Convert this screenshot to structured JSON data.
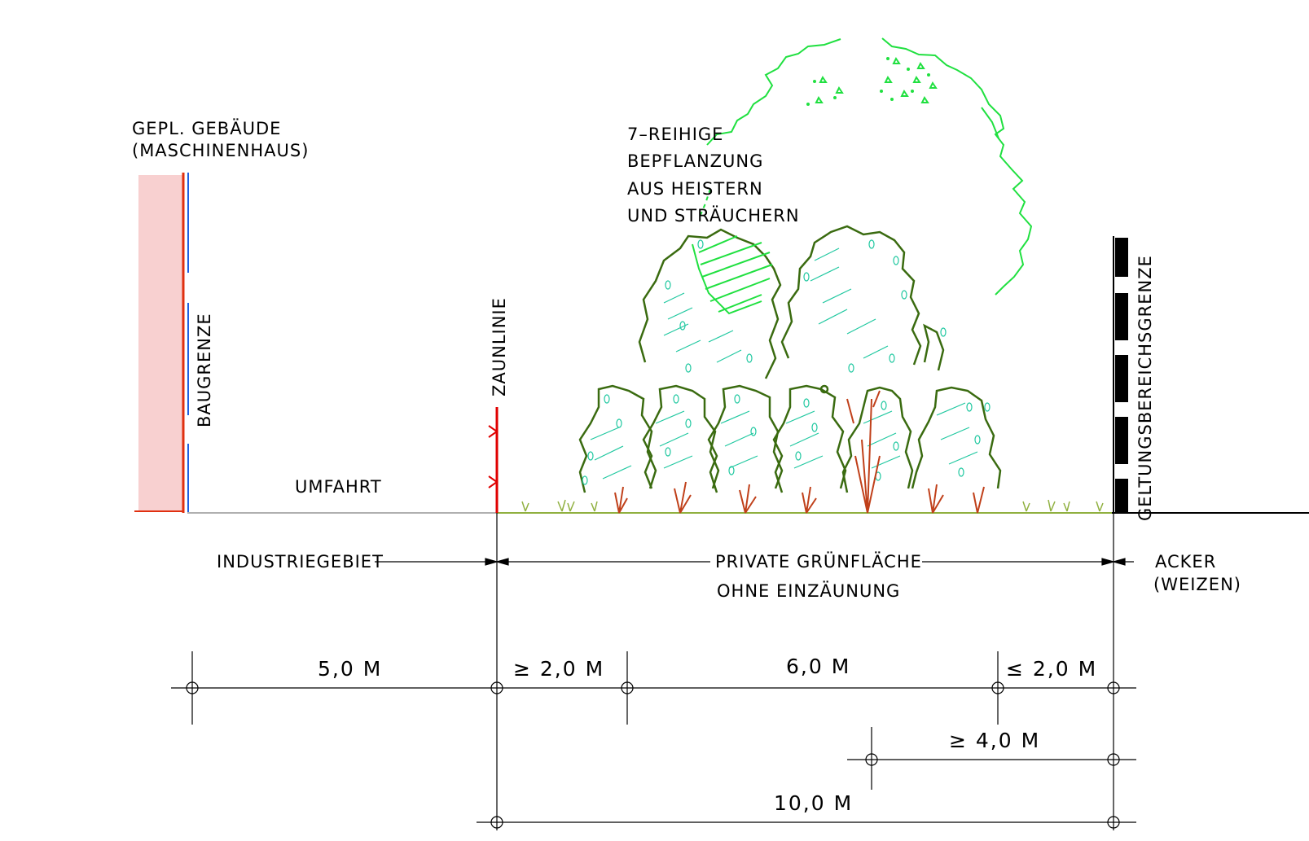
{
  "labels": {
    "building_line1": "GEPL. GEBÄUDE",
    "building_line2": "(MASCHINENHAUS)",
    "baugrenze": "BAUGRENZE",
    "zaunlinie": "ZAUNLINIE",
    "umfahrt": "UMFAHRT",
    "planting_line1": "7–REIHIGE",
    "planting_line2": "BEPFLANZUNG",
    "planting_line3": "AUS HEISTERN",
    "planting_line4": "UND STRÄUCHERN",
    "geltungsbereichsgrenze": "GELTUNGSBEREICHSGRENZE",
    "zone_industrie": "INDUSTRIEGEBIET",
    "zone_private_line1": "PRIVATE GRÜNFLÄCHE",
    "zone_private_line2": "OHNE EINZÄUNUNG",
    "zone_acker_line1": "ACKER",
    "zone_acker_line2": "(WEIZEN)"
  },
  "dimensions": {
    "d1": "5,0 M",
    "d2": "≥ 2,0 M",
    "d3": "6,0 M",
    "d4": "≤ 2,0 M",
    "d5": "≥ 4,0 M",
    "d6": "10,0 M"
  },
  "colors": {
    "building_fill": "#f8d0d0",
    "baugrenze_red": "#e03010",
    "baugrenze_blue": "#2060e0",
    "fence_red": "#e00000",
    "shrub_outline": "#3a6b10",
    "shrub_hatch": "#20c8a0",
    "tree_green": "#20e040",
    "stem_red": "#c0401a",
    "grass": "#90b040",
    "boundary_black": "#000000"
  }
}
